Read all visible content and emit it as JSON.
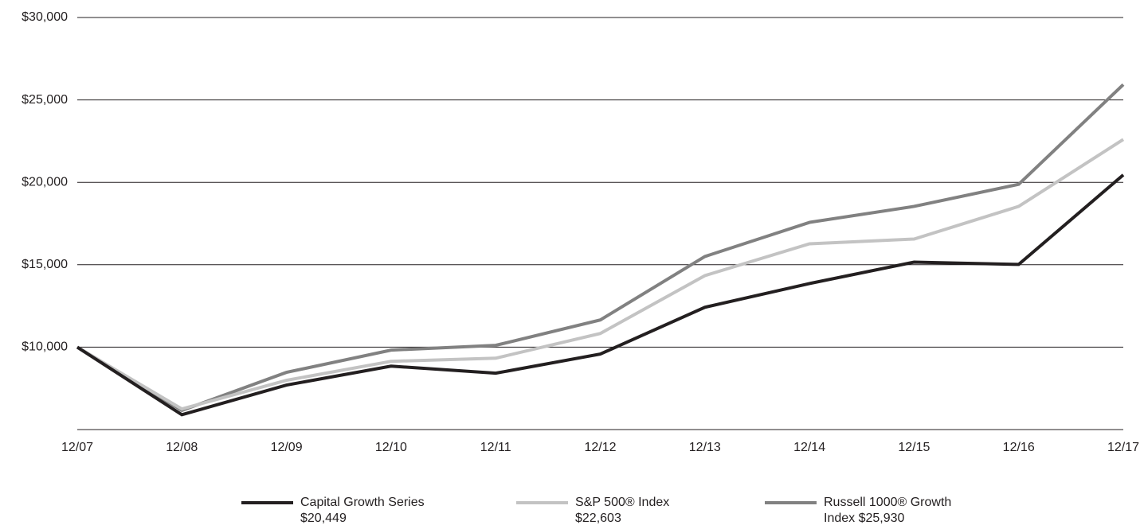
{
  "chart_data": {
    "type": "line",
    "categories": [
      "12/07",
      "12/08",
      "12/09",
      "12/10",
      "12/11",
      "12/12",
      "12/13",
      "12/14",
      "12/15",
      "12/16",
      "12/17"
    ],
    "series": [
      {
        "name": "Capital Growth Series $20,449",
        "color": "#231f20",
        "values": [
          10000,
          5900,
          7700,
          8850,
          8420,
          9580,
          12420,
          13860,
          15160,
          15020,
          20449
        ]
      },
      {
        "name": "S&P 500® Index $22,603",
        "color": "#c3c3c3",
        "values": [
          10000,
          6250,
          7990,
          9140,
          9330,
          10830,
          14340,
          16270,
          16560,
          18540,
          22603
        ]
      },
      {
        "name": "Russell 1000® Growth Index $25,930",
        "color": "#818181",
        "values": [
          10000,
          6160,
          8470,
          9820,
          10110,
          11650,
          15500,
          17570,
          18540,
          19880,
          25930
        ]
      }
    ],
    "ylim": [
      5000,
      30000
    ],
    "yticks": [
      {
        "value": 10000,
        "label": "$10,000"
      },
      {
        "value": 15000,
        "label": "$15,000"
      },
      {
        "value": 20000,
        "label": "$20,000"
      },
      {
        "value": 25000,
        "label": "$25,000"
      },
      {
        "value": 30000,
        "label": "$30,000"
      }
    ],
    "grid": true,
    "legend": "bottom"
  }
}
